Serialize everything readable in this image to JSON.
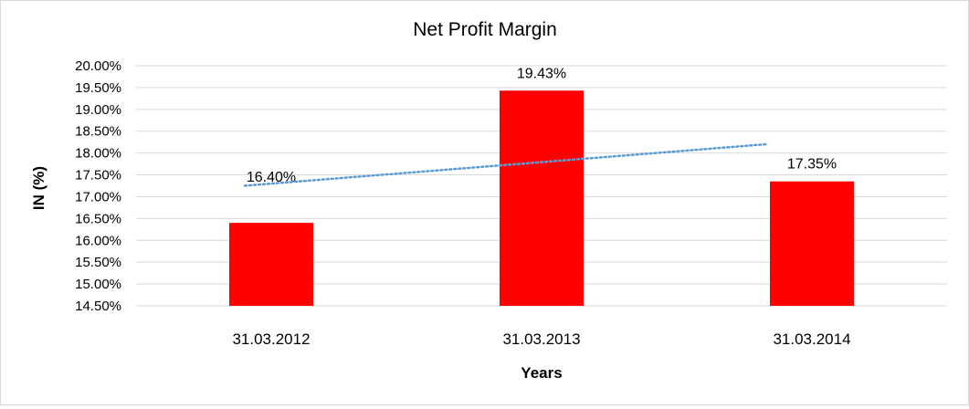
{
  "chart_data": {
    "type": "bar",
    "title": "Net Profit Margin",
    "xlabel": "Years",
    "ylabel": "IN (%)",
    "categories": [
      "31.03.2012",
      "31.03.2013",
      "31.03.2014"
    ],
    "values": [
      16.4,
      19.43,
      17.35
    ],
    "data_labels": [
      "16.40%",
      "19.43%",
      "17.35%"
    ],
    "ylim": [
      14.5,
      20.0
    ],
    "y_ticks": [
      "14.50%",
      "15.00%",
      "15.50%",
      "16.00%",
      "16.50%",
      "17.00%",
      "17.50%",
      "18.00%",
      "18.50%",
      "19.00%",
      "19.50%",
      "20.00%"
    ],
    "trendline": {
      "type": "linear",
      "style": "dotted"
    },
    "grid": true,
    "legend": "none",
    "colors": {
      "bar": "#ff0000",
      "trendline": "#5b9bd5",
      "grid": "#d9d9d9"
    }
  }
}
